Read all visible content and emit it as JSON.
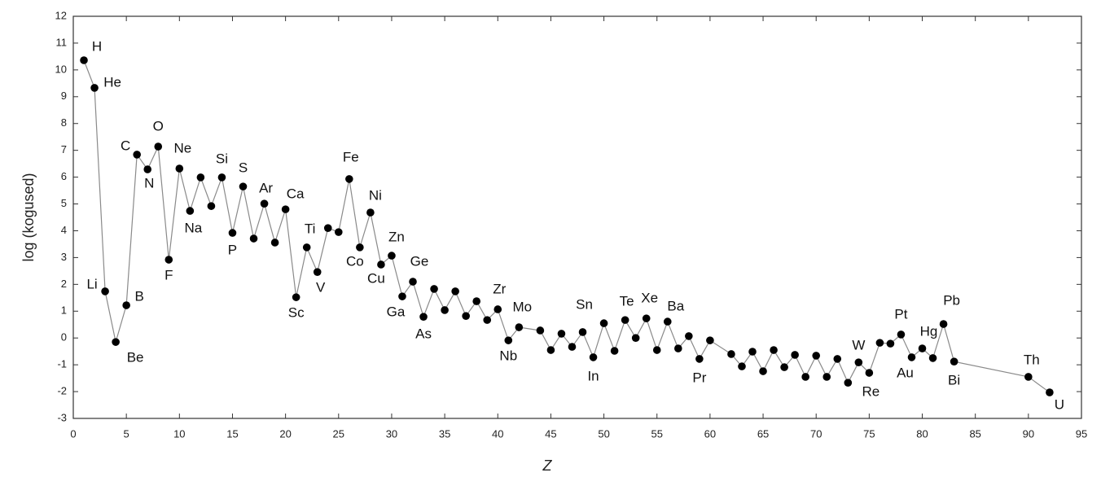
{
  "chart_data": {
    "type": "line",
    "xlabel": "Z",
    "ylabel": "log (kogused)",
    "xlim": [
      0,
      95
    ],
    "ylim": [
      -3,
      12
    ],
    "xticks": [
      0,
      5,
      10,
      15,
      20,
      25,
      30,
      35,
      40,
      45,
      50,
      55,
      60,
      65,
      70,
      75,
      80,
      85,
      90,
      95
    ],
    "yticks": [
      -3,
      -2,
      -1,
      0,
      1,
      2,
      3,
      4,
      5,
      6,
      7,
      8,
      9,
      10,
      11,
      12
    ],
    "line_color": "#8a8a8a",
    "marker_color": "#000000",
    "x": [
      1,
      2,
      3,
      4,
      5,
      6,
      7,
      8,
      9,
      10,
      11,
      12,
      13,
      14,
      15,
      16,
      17,
      18,
      19,
      20,
      21,
      22,
      23,
      24,
      25,
      26,
      27,
      28,
      29,
      30,
      31,
      32,
      33,
      34,
      35,
      36,
      37,
      38,
      39,
      40,
      41,
      42,
      44,
      45,
      46,
      47,
      48,
      49,
      50,
      51,
      52,
      53,
      54,
      55,
      56,
      57,
      58,
      59,
      60,
      62,
      63,
      64,
      65,
      66,
      67,
      68,
      69,
      70,
      71,
      72,
      73,
      74,
      75,
      76,
      77,
      78,
      79,
      80,
      81,
      82,
      83,
      90,
      92
    ],
    "values": [
      10.36,
      9.33,
      1.74,
      -0.15,
      1.22,
      6.84,
      6.29,
      7.14,
      2.92,
      6.32,
      4.74,
      5.99,
      4.92,
      5.99,
      3.92,
      5.65,
      3.71,
      5.01,
      3.56,
      4.8,
      1.52,
      3.38,
      2.46,
      4.1,
      3.95,
      5.93,
      3.38,
      4.68,
      2.74,
      3.07,
      1.55,
      2.1,
      0.79,
      1.83,
      1.04,
      1.74,
      0.82,
      1.37,
      0.67,
      1.07,
      -0.09,
      0.4,
      0.28,
      -0.45,
      0.16,
      -0.33,
      0.22,
      -0.72,
      0.55,
      -0.48,
      0.67,
      0.0,
      0.73,
      -0.45,
      0.61,
      -0.39,
      0.07,
      -0.78,
      -0.09,
      -0.6,
      -1.06,
      -0.51,
      -1.24,
      -0.45,
      -1.09,
      -0.63,
      -1.45,
      -0.66,
      -1.45,
      -0.78,
      -1.67,
      -0.91,
      -1.3,
      -0.18,
      -0.21,
      0.13,
      -0.72,
      -0.39,
      -0.75,
      0.52,
      -0.88,
      -1.45,
      -2.03
    ],
    "point_labels": [
      "H",
      "He",
      "Li",
      "Be",
      "B",
      "C",
      "N",
      "O",
      "F",
      "Ne",
      "Na",
      null,
      null,
      "Si",
      "P",
      "S",
      null,
      "Ar",
      null,
      "Ca",
      "Sc",
      "Ti",
      "V",
      null,
      null,
      "Fe",
      "Co",
      "Ni",
      "Cu",
      "Zn",
      "Ga",
      "Ge",
      "As",
      null,
      null,
      null,
      null,
      null,
      null,
      "Zr",
      "Nb",
      "Mo",
      null,
      null,
      null,
      null,
      null,
      "In",
      "Sn",
      null,
      "Te",
      null,
      "Xe",
      null,
      "Ba",
      null,
      null,
      "Pr",
      null,
      null,
      null,
      null,
      null,
      null,
      null,
      null,
      null,
      null,
      null,
      null,
      null,
      "W",
      "Re",
      null,
      null,
      "Pt",
      "Au",
      "Hg",
      null,
      "Pb",
      "Bi",
      "Th",
      "U"
    ]
  }
}
